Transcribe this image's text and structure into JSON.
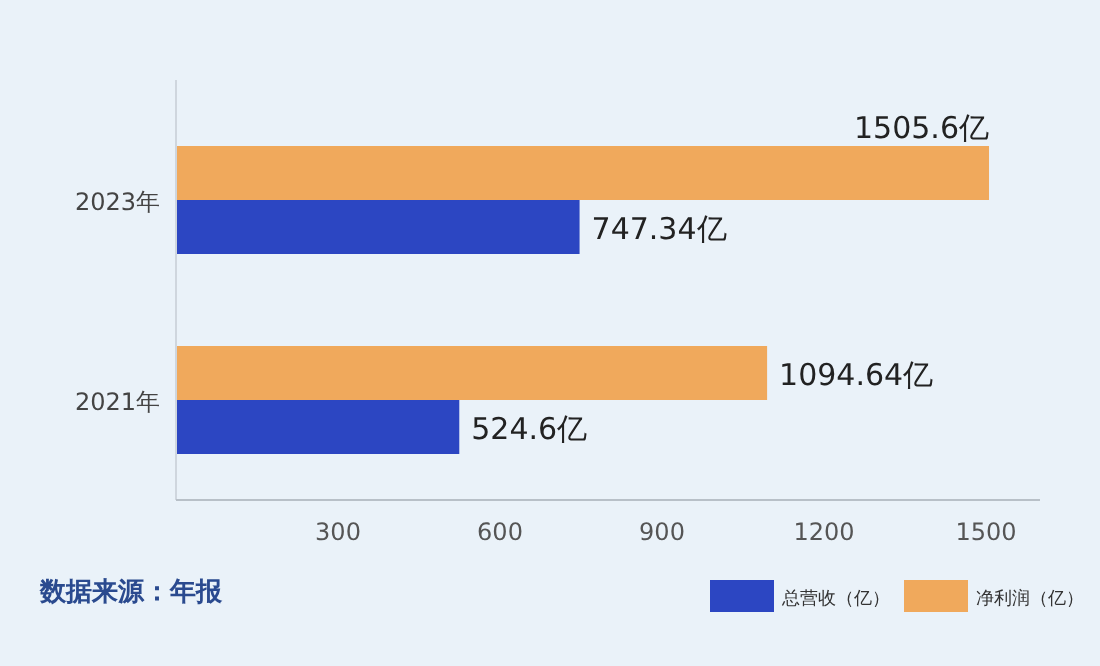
{
  "chart_data": {
    "type": "bar",
    "orientation": "horizontal",
    "categories": [
      "2023年",
      "2021年"
    ],
    "series": [
      {
        "name": "总营收（亿）",
        "color": "#2c46c2",
        "values": [
          747.34,
          524.6
        ],
        "value_labels": [
          "747.34亿",
          "524.6亿"
        ]
      },
      {
        "name": "净利润（亿）",
        "color": "#f0a95c",
        "values": [
          1505.6,
          1094.64
        ],
        "value_labels": [
          "1505.6亿",
          "1094.64亿"
        ]
      }
    ],
    "xlim": [
      0,
      1600
    ],
    "xticks": [
      300,
      600,
      900,
      1200,
      1500
    ],
    "legend": "bottom right",
    "grid": false,
    "annotations": [
      "数据来源：年报"
    ]
  }
}
